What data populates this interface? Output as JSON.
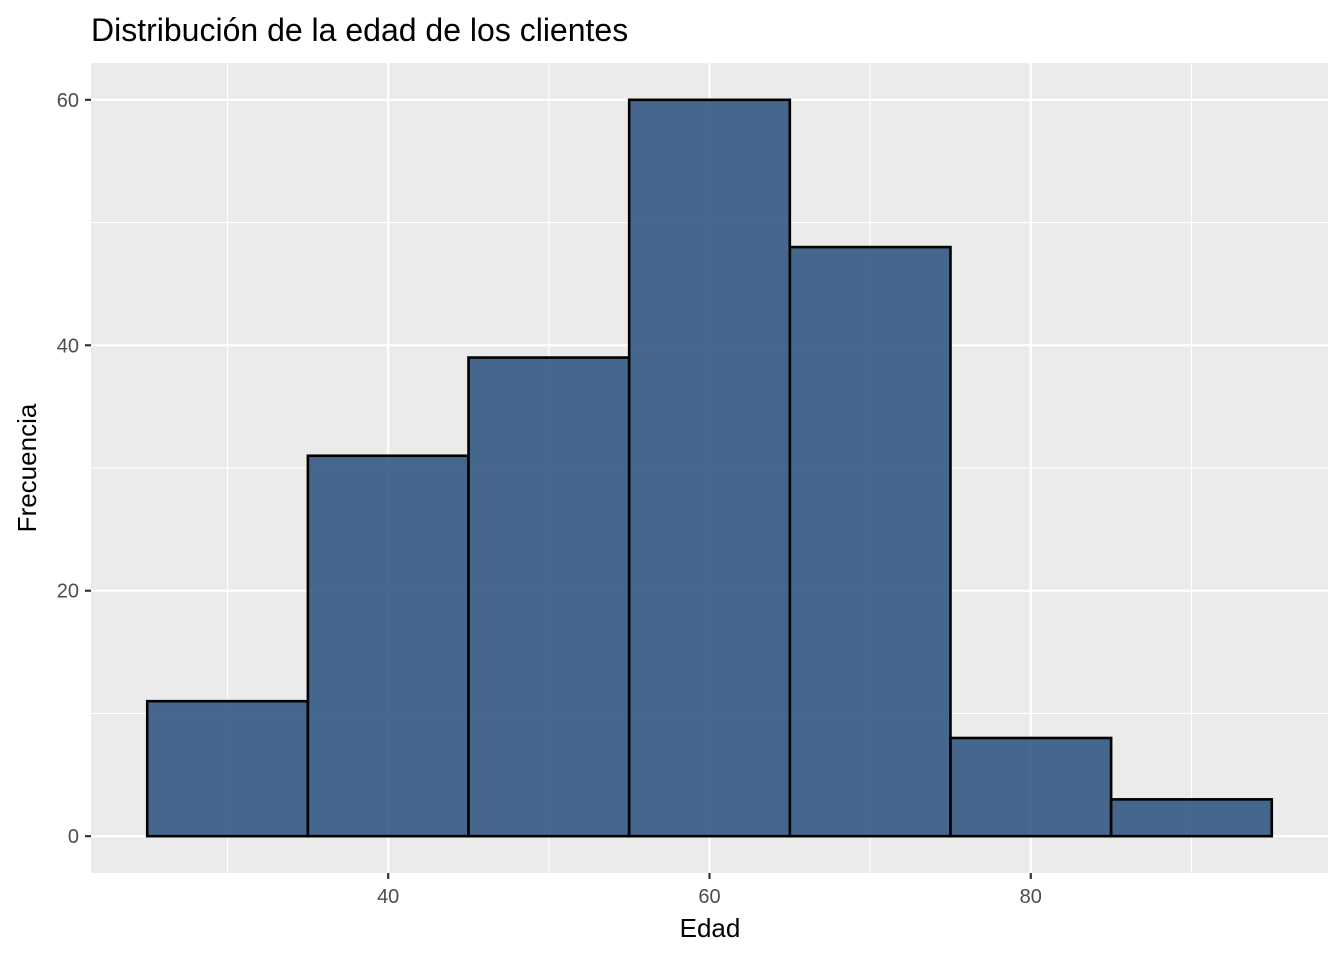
{
  "chart_data": {
    "type": "bar",
    "subtype": "histogram",
    "title": "Distribución de la edad de los clientes",
    "xlabel": "Edad",
    "ylabel": "Frecuencia",
    "bins": [
      {
        "start": 25,
        "end": 35,
        "count": 11
      },
      {
        "start": 35,
        "end": 45,
        "count": 31
      },
      {
        "start": 45,
        "end": 55,
        "count": 39
      },
      {
        "start": 55,
        "end": 65,
        "count": 60
      },
      {
        "start": 65,
        "end": 75,
        "count": 48
      },
      {
        "start": 75,
        "end": 85,
        "count": 8
      },
      {
        "start": 85,
        "end": 95,
        "count": 3
      }
    ],
    "xlim": [
      21.5,
      98.5
    ],
    "ylim": [
      -3,
      63
    ],
    "x_ticks": [
      40,
      60,
      80
    ],
    "y_ticks": [
      0,
      20,
      40,
      60
    ],
    "x_tick_labels": [
      "40",
      "60",
      "80"
    ],
    "y_tick_labels": [
      "0",
      "20",
      "40",
      "60"
    ],
    "grid": true,
    "bar_fill": "#2e5480",
    "bar_outline": "#000000",
    "panel_background": "#ebebeb"
  }
}
